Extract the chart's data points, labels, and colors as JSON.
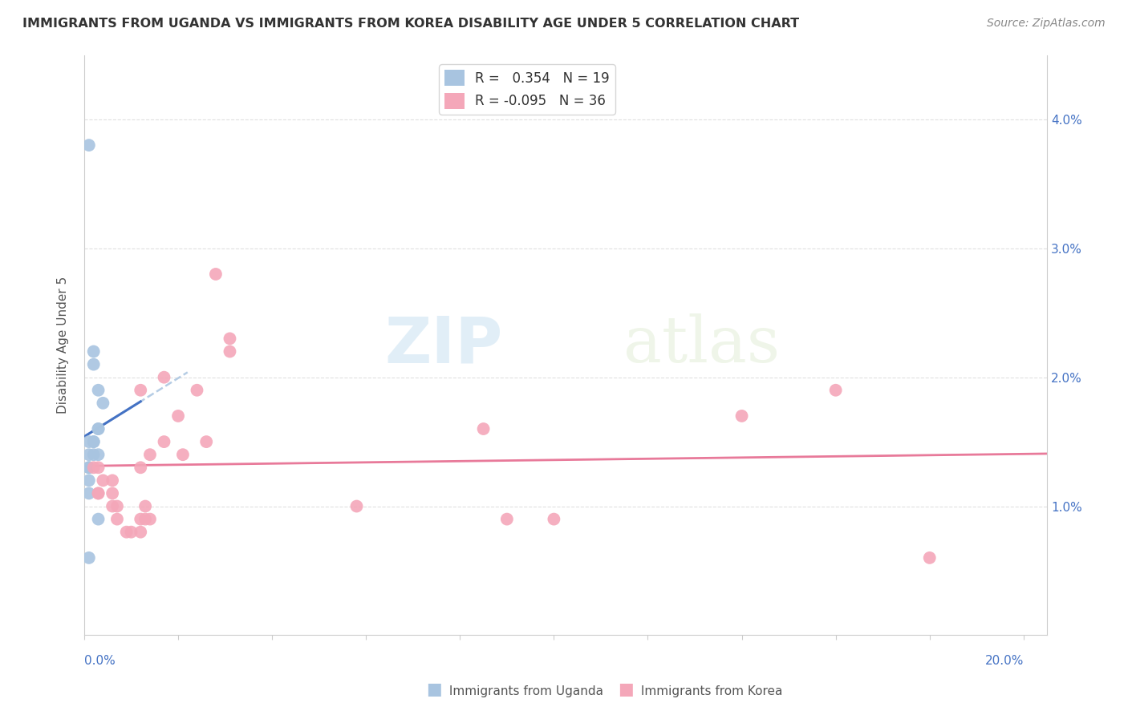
{
  "title": "IMMIGRANTS FROM UGANDA VS IMMIGRANTS FROM KOREA DISABILITY AGE UNDER 5 CORRELATION CHART",
  "source": "Source: ZipAtlas.com",
  "ylabel": "Disability Age Under 5",
  "r_uganda": 0.354,
  "n_uganda": 19,
  "r_korea": -0.095,
  "n_korea": 36,
  "color_uganda": "#a8c4e0",
  "color_korea": "#f4a7b9",
  "trendline_uganda": "#4472c4",
  "trendline_korea": "#e87a9a",
  "uganda_points": [
    [
      0.001,
      0.038
    ],
    [
      0.002,
      0.022
    ],
    [
      0.002,
      0.021
    ],
    [
      0.003,
      0.019
    ],
    [
      0.004,
      0.018
    ],
    [
      0.003,
      0.016
    ],
    [
      0.003,
      0.016
    ],
    [
      0.002,
      0.015
    ],
    [
      0.002,
      0.015
    ],
    [
      0.001,
      0.015
    ],
    [
      0.001,
      0.014
    ],
    [
      0.002,
      0.014
    ],
    [
      0.003,
      0.014
    ],
    [
      0.001,
      0.013
    ],
    [
      0.001,
      0.013
    ],
    [
      0.001,
      0.012
    ],
    [
      0.001,
      0.011
    ],
    [
      0.003,
      0.009
    ],
    [
      0.001,
      0.006
    ]
  ],
  "korea_points": [
    [
      0.028,
      0.028
    ],
    [
      0.031,
      0.023
    ],
    [
      0.031,
      0.022
    ],
    [
      0.017,
      0.02
    ],
    [
      0.024,
      0.019
    ],
    [
      0.012,
      0.019
    ],
    [
      0.02,
      0.017
    ],
    [
      0.017,
      0.015
    ],
    [
      0.026,
      0.015
    ],
    [
      0.014,
      0.014
    ],
    [
      0.021,
      0.014
    ],
    [
      0.012,
      0.013
    ],
    [
      0.002,
      0.013
    ],
    [
      0.003,
      0.013
    ],
    [
      0.006,
      0.012
    ],
    [
      0.004,
      0.012
    ],
    [
      0.003,
      0.011
    ],
    [
      0.003,
      0.011
    ],
    [
      0.006,
      0.011
    ],
    [
      0.006,
      0.01
    ],
    [
      0.007,
      0.01
    ],
    [
      0.013,
      0.01
    ],
    [
      0.007,
      0.009
    ],
    [
      0.012,
      0.009
    ],
    [
      0.013,
      0.009
    ],
    [
      0.014,
      0.009
    ],
    [
      0.058,
      0.01
    ],
    [
      0.009,
      0.008
    ],
    [
      0.01,
      0.008
    ],
    [
      0.012,
      0.008
    ],
    [
      0.09,
      0.009
    ],
    [
      0.14,
      0.017
    ],
    [
      0.16,
      0.019
    ],
    [
      0.18,
      0.006
    ],
    [
      0.085,
      0.016
    ],
    [
      0.1,
      0.009
    ]
  ],
  "xlim": [
    0.0,
    0.205
  ],
  "ylim": [
    0.0,
    0.045
  ],
  "watermark_zip": "ZIP",
  "watermark_atlas": "atlas",
  "background_color": "#ffffff",
  "grid_color": "#dddddd"
}
